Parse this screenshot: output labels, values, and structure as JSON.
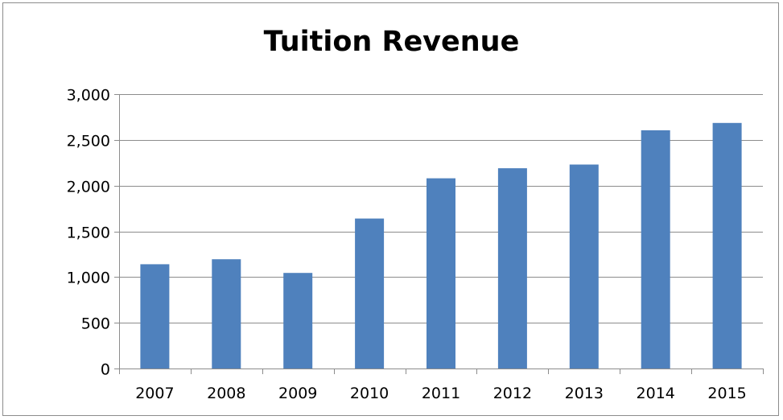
{
  "chart_data": {
    "type": "bar",
    "title": "Tuition Revenue",
    "xlabel": "",
    "ylabel": "",
    "categories": [
      "2007",
      "2008",
      "2009",
      "2010",
      "2011",
      "2012",
      "2013",
      "2014",
      "2015"
    ],
    "values": [
      1140,
      1195,
      1045,
      1640,
      2080,
      2190,
      2230,
      2605,
      2685
    ],
    "ylim": [
      0,
      3000
    ],
    "ytick_values": [
      0,
      500,
      1000,
      1500,
      2000,
      2500,
      3000
    ],
    "ytick_labels": [
      "0",
      "500",
      "1,000",
      "1,500",
      "2,000",
      "2,500",
      "3,000"
    ],
    "grid": true,
    "legend": "none",
    "bar_color": "#4f81bd",
    "grid_color": "#8c8c8c",
    "axis_color": "#8c8c8c"
  }
}
